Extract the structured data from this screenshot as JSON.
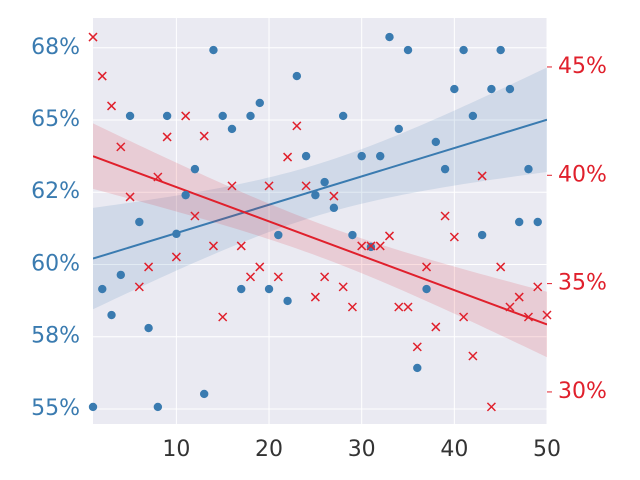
{
  "chart_data": {
    "type": "scatter",
    "x": [
      1,
      2,
      3,
      4,
      5,
      6,
      7,
      8,
      9,
      10,
      11,
      12,
      13,
      14,
      15,
      16,
      17,
      18,
      19,
      20,
      21,
      22,
      23,
      24,
      25,
      26,
      27,
      28,
      29,
      30,
      31,
      32,
      33,
      34,
      35,
      36,
      37,
      38,
      39,
      40,
      41,
      42,
      43,
      44,
      45,
      46,
      47,
      48,
      49,
      50
    ],
    "xlim": [
      1,
      50
    ],
    "xticks": [
      10,
      20,
      30,
      40,
      50
    ],
    "ylim": [
      54.48,
      68.53
    ],
    "yticks": [
      {
        "value": 55,
        "label": "55%"
      },
      {
        "value": 57.5,
        "label": "58%"
      },
      {
        "value": 60,
        "label": "60%"
      },
      {
        "value": 62.5,
        "label": "62%"
      },
      {
        "value": 65,
        "label": "65%"
      },
      {
        "value": 67.5,
        "label": "68%"
      }
    ],
    "y2lim": [
      28.52,
      47.26
    ],
    "y2ticks": [
      {
        "value": 30,
        "label": "30%"
      },
      {
        "value": 35,
        "label": "35%"
      },
      {
        "value": 40,
        "label": "40%"
      },
      {
        "value": 45,
        "label": "45%"
      }
    ],
    "grid": true,
    "series": [
      {
        "color": "#3a7bb0",
        "marker": "o",
        "axis": "y",
        "values": [
          55.07,
          59.15,
          58.25,
          59.64,
          65.14,
          61.47,
          57.8,
          55.07,
          65.14,
          61.06,
          62.4,
          63.3,
          55.52,
          67.42,
          65.14,
          64.69,
          59.15,
          65.14,
          65.59,
          59.15,
          61.02,
          58.74,
          66.52,
          63.75,
          62.4,
          62.85,
          61.96,
          65.14,
          61.02,
          63.75,
          60.61,
          63.75,
          67.87,
          64.69,
          67.42,
          56.42,
          59.15,
          64.24,
          63.3,
          66.07,
          67.42,
          65.14,
          61.02,
          66.07,
          67.42,
          66.07,
          61.47,
          63.3,
          61.47,
          null
        ]
      },
      {
        "color": "#e0202c",
        "marker": "x",
        "axis": "y2",
        "values": [
          46.38,
          44.58,
          43.2,
          41.31,
          39.0,
          34.85,
          35.77,
          39.92,
          41.77,
          36.23,
          42.74,
          38.12,
          41.81,
          36.74,
          33.46,
          39.51,
          36.74,
          35.31,
          35.77,
          39.51,
          35.31,
          40.84,
          42.28,
          39.51,
          34.38,
          35.31,
          39.04,
          34.85,
          33.92,
          36.74,
          36.74,
          36.74,
          37.2,
          33.92,
          33.92,
          32.08,
          35.77,
          33.0,
          38.12,
          37.15,
          33.46,
          31.66,
          39.97,
          29.31,
          35.77,
          33.92,
          34.38,
          33.46,
          34.85,
          33.55
        ]
      }
    ]
  }
}
